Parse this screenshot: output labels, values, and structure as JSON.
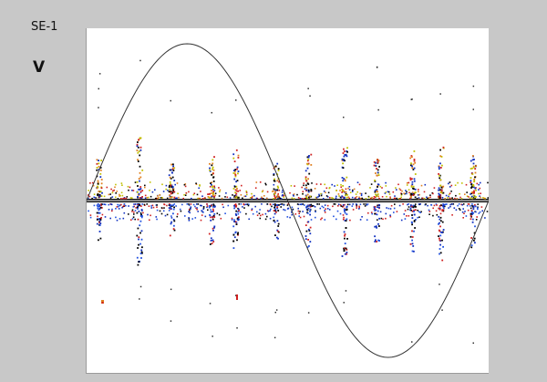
{
  "window": {
    "sensor_label": "SE-1",
    "unit_label": "V"
  },
  "chart_data": {
    "type": "scatter",
    "title": "",
    "xlabel": "",
    "ylabel": "V",
    "grid": false,
    "legend": "none",
    "reference_wave": {
      "shape": "sine",
      "cycles": 1,
      "amplitude": 1.0,
      "color": "#333333"
    },
    "baseline": {
      "value": 0,
      "color": "#111111"
    },
    "burst_phases": [
      0.03,
      0.13,
      0.21,
      0.31,
      0.37,
      0.47,
      0.55,
      0.64,
      0.72,
      0.81,
      0.88,
      0.96
    ],
    "burst_strengths": [
      0.45,
      0.7,
      0.4,
      0.5,
      0.55,
      0.4,
      0.5,
      0.6,
      0.45,
      0.55,
      0.65,
      0.5
    ],
    "colors": {
      "positive": [
        "#d02020",
        "#1030c0",
        "#000000",
        "#e08020",
        "#c0c000"
      ],
      "negative": [
        "#1030c0",
        "#d02020",
        "#000000",
        "#2050e0"
      ]
    }
  }
}
